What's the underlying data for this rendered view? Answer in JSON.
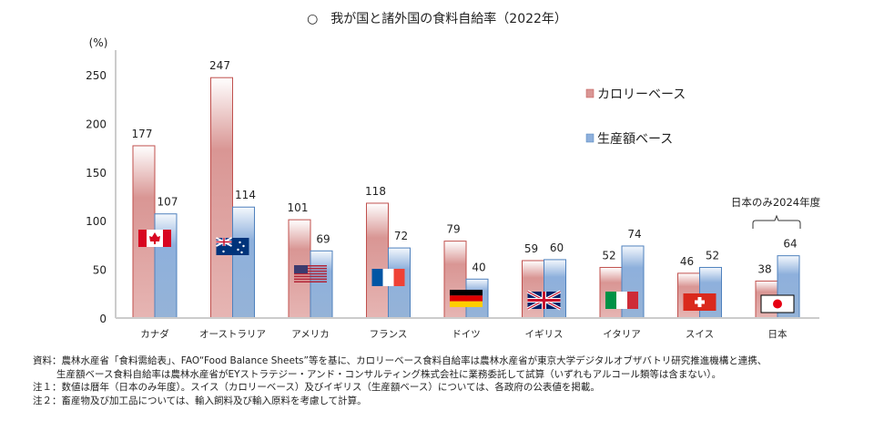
{
  "chart_data": {
    "type": "bar",
    "title": "○　我が国と諸外国の食料自給率（2022年）",
    "ylabel": "(%)",
    "ylim": [
      0,
      270
    ],
    "yticks": [
      0,
      50,
      100,
      150,
      200,
      250
    ],
    "grid": false,
    "legend_position": "right",
    "categories": [
      "カナダ",
      "オーストラリア",
      "アメリカ",
      "フランス",
      "ドイツ",
      "イギリス",
      "イタリア",
      "スイス",
      "日本"
    ],
    "flags": [
      "canada",
      "australia",
      "usa",
      "france",
      "germany",
      "uk",
      "italy",
      "switzerland",
      "japan"
    ],
    "series": [
      {
        "name": "カロリーベース",
        "color": "#d99694",
        "values": [
          177,
          247,
          101,
          118,
          79,
          59,
          52,
          46,
          38
        ]
      },
      {
        "name": "生産額ベース",
        "color": "#8eb0dc",
        "values": [
          107,
          114,
          69,
          72,
          40,
          60,
          74,
          52,
          64
        ]
      }
    ],
    "annotation": "日本のみ2024年度"
  },
  "notes": [
    "資料：農林水産省「食料需給表」、FAO“Food Balance Sheets”等を基に、カロリーベース食料自給率は農林水産省が東京大学デジタルオブザバトリ研究推進機構と連携、",
    "生産額ベース食料自給率は農林水産省がEYストラテジー・アンド・コンサルティング株式会社に業務委託して試算（いずれもアルコール類等は含まない）。",
    "注１：数値は暦年（日本のみ年度）。スイス（カロリーベース）及びイギリス（生産額ベース）については、各政府の公表値を掲載。",
    "注２：畜産物及び加工品については、輸入飼料及び輸入原料を考慮して計算。"
  ]
}
